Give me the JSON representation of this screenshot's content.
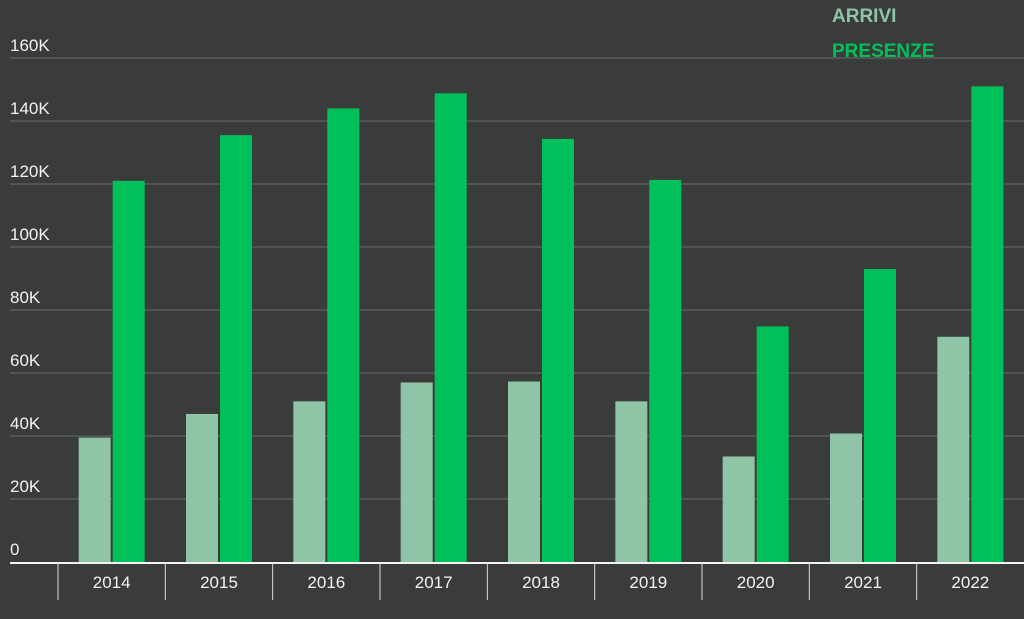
{
  "chart_data": {
    "type": "bar",
    "categories": [
      "2014",
      "2015",
      "2016",
      "2017",
      "2018",
      "2019",
      "2020",
      "2021",
      "2022"
    ],
    "series": [
      {
        "name": "ARRIVI",
        "color": "#8fc4a6",
        "values": [
          39500,
          47000,
          51000,
          57000,
          57300,
          51000,
          33500,
          40800,
          71500
        ]
      },
      {
        "name": "PRESENZE",
        "color": "#00c05a",
        "values": [
          121000,
          135500,
          144000,
          148800,
          134300,
          121300,
          74800,
          93000,
          151000
        ]
      }
    ],
    "ylim": [
      0,
      160000
    ],
    "yticks": [
      0,
      20000,
      40000,
      60000,
      80000,
      100000,
      120000,
      140000,
      160000
    ],
    "ytick_labels": [
      "0",
      "20K",
      "40K",
      "60K",
      "80K",
      "100K",
      "120K",
      "140K",
      "160K"
    ],
    "grid": true,
    "legend": "top-right",
    "background": "#3a3c3c",
    "gridline_color": "#6a6d6d",
    "text_color": "#f2f2f2"
  }
}
